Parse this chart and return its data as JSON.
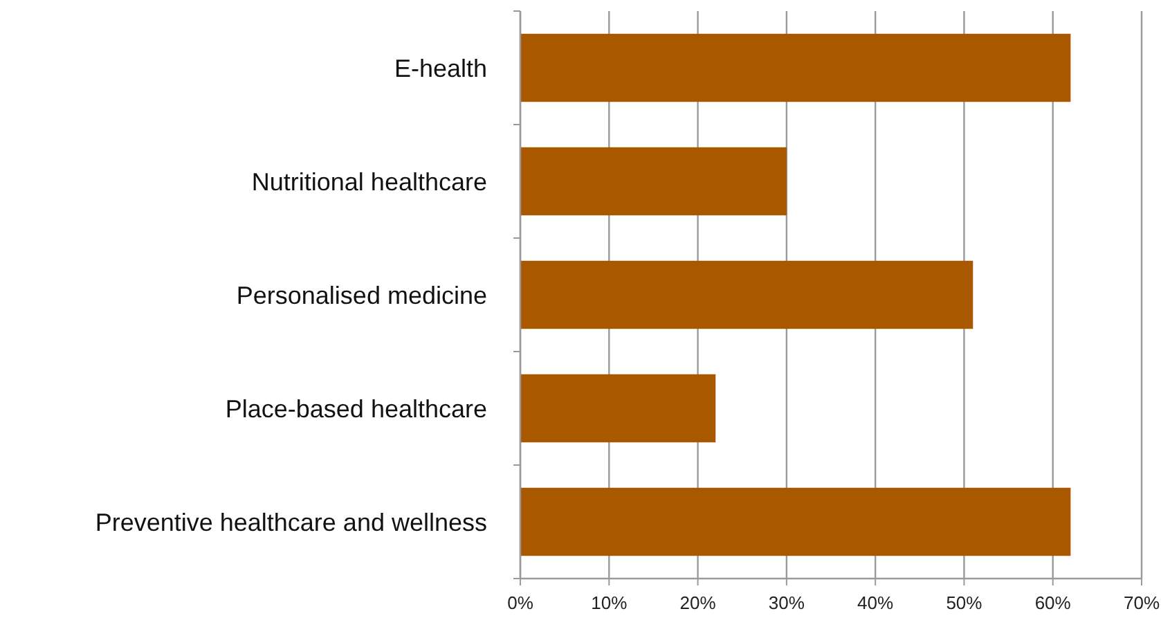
{
  "chart_data": {
    "type": "bar",
    "orientation": "horizontal",
    "categories": [
      "E-health",
      "Nutritional healthcare",
      "Personalised medicine",
      "Place-based healthcare",
      "Preventive healthcare and wellness"
    ],
    "values": [
      62,
      30,
      51,
      22,
      62
    ],
    "color": "#a95800",
    "xlim": [
      0,
      70
    ],
    "xticks": [
      {
        "value": 0,
        "label": "0%"
      },
      {
        "value": 10,
        "label": "10%"
      },
      {
        "value": 20,
        "label": "20%"
      },
      {
        "value": 30,
        "label": "30%"
      },
      {
        "value": 40,
        "label": "40%"
      },
      {
        "value": 50,
        "label": "50%"
      },
      {
        "value": 60,
        "label": "60%"
      },
      {
        "value": 70,
        "label": "70%"
      }
    ],
    "grid": "x"
  }
}
